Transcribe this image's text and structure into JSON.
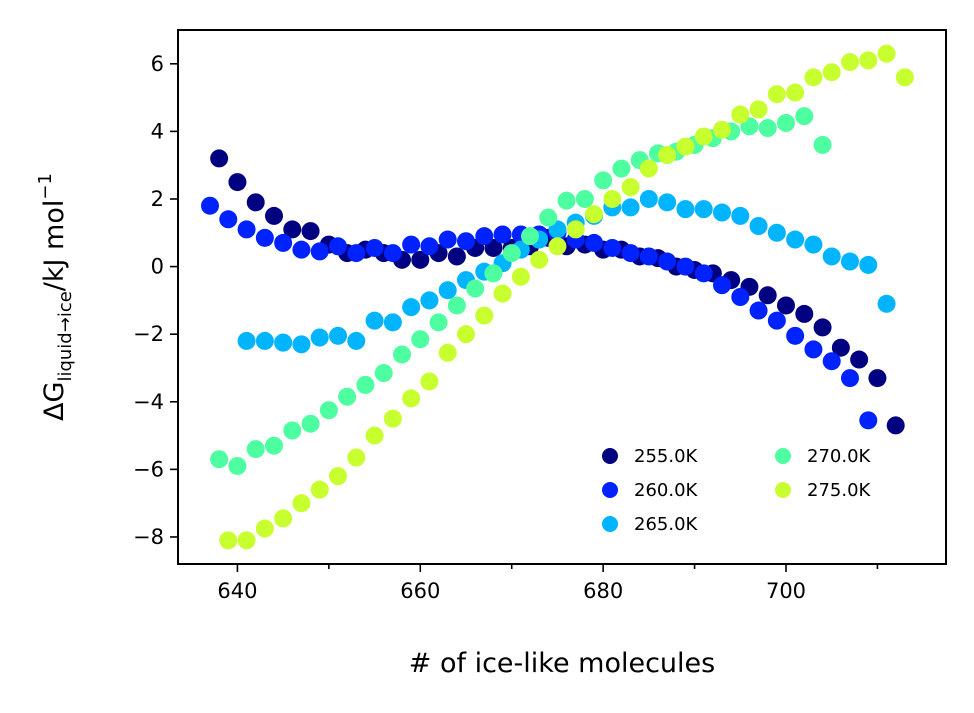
{
  "chart_data": {
    "type": "scatter",
    "xlabel": "# of ice-like molecules",
    "ylabel": {
      "base": "ΔG",
      "subscript": "liquid→ice",
      "unit": "/kJ mol",
      "superscript": "−1"
    },
    "xlim": [
      633.5,
      717.5
    ],
    "ylim": [
      -8.8,
      7.0
    ],
    "xticks": [
      640,
      660,
      680,
      700
    ],
    "xtick_labels": [
      "640",
      "660",
      "680",
      "700"
    ],
    "yticks": [
      -8,
      -6,
      -4,
      -2,
      0,
      2,
      4,
      6
    ],
    "ytick_labels": [
      "−8",
      "−6",
      "−4",
      "−2",
      "0",
      "2",
      "4",
      "6"
    ],
    "legend_position": "lower-right",
    "legend_columns": 2,
    "series": [
      {
        "name": "255.0K",
        "color": "#000080",
        "x": [
          638,
          640,
          642,
          644,
          646,
          648,
          650,
          652,
          654,
          656,
          658,
          660,
          662,
          664,
          666,
          668,
          670,
          672,
          674,
          676,
          678,
          680,
          682,
          684,
          686,
          688,
          690,
          692,
          694,
          696,
          698,
          700,
          702,
          704,
          706,
          708,
          710,
          712
        ],
        "y": [
          3.2,
          2.5,
          1.9,
          1.5,
          1.1,
          1.05,
          0.65,
          0.4,
          0.5,
          0.4,
          0.2,
          0.2,
          0.4,
          0.3,
          0.55,
          0.55,
          0.55,
          0.6,
          0.85,
          0.6,
          0.65,
          0.5,
          0.5,
          0.3,
          0.25,
          0.0,
          -0.1,
          -0.2,
          -0.4,
          -0.6,
          -0.85,
          -1.15,
          -1.4,
          -1.8,
          -2.4,
          -2.75,
          -3.3,
          -4.7
        ]
      },
      {
        "name": "260.0K",
        "color": "#0022ff",
        "x": [
          637,
          639,
          641,
          643,
          645,
          647,
          649,
          651,
          653,
          655,
          657,
          659,
          661,
          663,
          665,
          667,
          669,
          671,
          673,
          675,
          677,
          679,
          681,
          683,
          685,
          687,
          689,
          691,
          693,
          695,
          697,
          699,
          701,
          703,
          705,
          707,
          709
        ],
        "y": [
          1.8,
          1.4,
          1.1,
          0.85,
          0.7,
          0.5,
          0.45,
          0.6,
          0.4,
          0.55,
          0.4,
          0.65,
          0.6,
          0.8,
          0.75,
          0.9,
          0.95,
          0.95,
          0.95,
          1.0,
          0.8,
          0.7,
          0.55,
          0.4,
          0.3,
          0.15,
          0.0,
          -0.2,
          -0.55,
          -0.9,
          -1.3,
          -1.6,
          -2.05,
          -2.45,
          -2.8,
          -3.3,
          -4.55
        ]
      },
      {
        "name": "265.0K",
        "color": "#00b4ff",
        "x": [
          641,
          643,
          645,
          647,
          649,
          651,
          653,
          655,
          657,
          659,
          661,
          663,
          665,
          667,
          669,
          671,
          673,
          675,
          677,
          679,
          681,
          683,
          685,
          687,
          689,
          691,
          693,
          695,
          697,
          699,
          701,
          703,
          705,
          707,
          709,
          711
        ],
        "y": [
          -2.2,
          -2.2,
          -2.25,
          -2.3,
          -2.1,
          -2.05,
          -2.2,
          -1.6,
          -1.65,
          -1.2,
          -1.0,
          -0.7,
          -0.4,
          -0.15,
          0.1,
          0.5,
          0.8,
          1.1,
          1.3,
          1.5,
          1.75,
          1.75,
          2.0,
          1.9,
          1.7,
          1.7,
          1.6,
          1.5,
          1.2,
          1.0,
          0.8,
          0.65,
          0.3,
          0.15,
          0.05,
          -1.1
        ]
      },
      {
        "name": "270.0K",
        "color": "#4dffa0",
        "x": [
          638,
          640,
          642,
          644,
          646,
          648,
          650,
          652,
          654,
          656,
          658,
          660,
          662,
          664,
          666,
          668,
          670,
          672,
          674,
          676,
          678,
          680,
          682,
          684,
          686,
          688,
          690,
          692,
          694,
          696,
          698,
          700,
          702,
          704
        ],
        "y": [
          -5.7,
          -5.9,
          -5.4,
          -5.3,
          -4.85,
          -4.65,
          -4.25,
          -3.85,
          -3.5,
          -3.15,
          -2.6,
          -2.15,
          -1.65,
          -1.15,
          -0.65,
          -0.2,
          0.4,
          0.9,
          1.45,
          1.95,
          2.0,
          2.55,
          2.9,
          3.15,
          3.35,
          3.4,
          3.6,
          3.8,
          4.0,
          4.15,
          4.1,
          4.25,
          4.45,
          3.6
        ]
      },
      {
        "name": "275.0K",
        "color": "#c8ff2e",
        "x": [
          639,
          641,
          643,
          645,
          647,
          649,
          651,
          653,
          655,
          657,
          659,
          661,
          663,
          665,
          667,
          669,
          671,
          673,
          675,
          677,
          679,
          681,
          683,
          685,
          687,
          689,
          691,
          693,
          695,
          697,
          699,
          701,
          703,
          705,
          707,
          709,
          711,
          713
        ],
        "y": [
          -8.1,
          -8.1,
          -7.75,
          -7.45,
          -7.0,
          -6.6,
          -6.2,
          -5.65,
          -5.0,
          -4.5,
          -3.9,
          -3.4,
          -2.55,
          -2.0,
          -1.45,
          -0.8,
          -0.3,
          0.2,
          0.6,
          1.1,
          1.55,
          2.0,
          2.35,
          2.9,
          3.3,
          3.55,
          3.85,
          4.05,
          4.5,
          4.65,
          5.1,
          5.15,
          5.6,
          5.75,
          6.05,
          6.1,
          6.3,
          5.6
        ]
      }
    ]
  }
}
